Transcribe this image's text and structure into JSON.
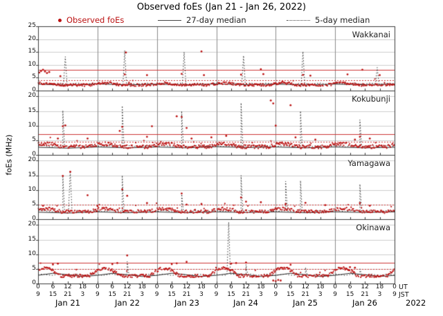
{
  "header": {
    "title": "Observed foEs (Jan 21 - Jan 26, 2022)"
  },
  "legend": {
    "observed": {
      "label": "Observed foEs",
      "color": "#bb1111",
      "marker": "dot"
    },
    "median27": {
      "label": "27-day median",
      "color": "#444444",
      "style": "solid"
    },
    "median5": {
      "label": "5-day median",
      "color": "#444444",
      "style": "dotted"
    }
  },
  "chart_data": {
    "type": "scatter",
    "title": "Observed foEs (Jan 21 - Jan 26, 2022)",
    "colors": {
      "observed": "#bb1111",
      "median": "#2b2b2b",
      "red_line": "#cc3333",
      "grid": "#cccccc",
      "day_grid": "#8a8a8a",
      "border": "#3a3a3a"
    },
    "axes": {
      "ylabel": "foEs (MHz)",
      "x_start_hour": 0,
      "x_end_hour": 144,
      "ut_tick_step": 6,
      "ut_tick_labels": [
        "0",
        "6",
        "12",
        "18"
      ],
      "jst_tick_labels": [
        "9",
        "15",
        "21",
        "3"
      ],
      "ut_axis_label": "UT",
      "jst_axis_label": "JST",
      "day_labels": [
        "Jan 21",
        "Jan 22",
        "Jan 23",
        "Jan 24",
        "Jan 25",
        "Jan 26"
      ],
      "year_label": "2022"
    },
    "panels": [
      {
        "station": "Wakkanai",
        "ylim": [
          0,
          25
        ],
        "yticks": [
          0,
          5,
          10,
          15,
          20,
          25
        ],
        "red_solid_level": 8.0,
        "red_dotted_level": 4.0,
        "scatter_gen": {
          "seed": 101,
          "step_h": 0.3,
          "mean": 2.2,
          "diurnal_amp": 0.7,
          "noise": 0.5,
          "dropout": 0.1
        },
        "observed_features": [
          [
            0.5,
            7.0
          ],
          [
            1.2,
            7.6
          ],
          [
            2.0,
            8.1
          ],
          [
            2.8,
            7.4
          ],
          [
            3.6,
            6.8
          ],
          [
            4.5,
            7.2
          ],
          [
            9,
            5.6
          ],
          [
            35,
            6.3
          ],
          [
            35.5,
            14.8
          ],
          [
            44,
            6.0
          ],
          [
            58,
            6.5
          ],
          [
            66,
            15.2
          ],
          [
            67,
            6.0
          ],
          [
            82,
            6.2
          ],
          [
            90,
            8.3
          ],
          [
            91,
            6.4
          ],
          [
            107,
            6.1
          ],
          [
            110,
            5.8
          ],
          [
            125,
            6.3
          ],
          [
            131,
            8.1
          ],
          [
            138,
            6.0
          ]
        ],
        "median27": [
          [
            0,
            2.5
          ],
          [
            12,
            2.1
          ],
          [
            24,
            2.6
          ],
          [
            36,
            2.2
          ],
          [
            48,
            2.5
          ],
          [
            60,
            2.2
          ],
          [
            72,
            2.6
          ],
          [
            84,
            2.3
          ],
          [
            96,
            2.5
          ],
          [
            108,
            2.2
          ],
          [
            120,
            2.5
          ],
          [
            132,
            2.3
          ],
          [
            144,
            2.5
          ]
        ],
        "median5_base": 2.7,
        "median5_spikes": [
          [
            11,
            13.2
          ],
          [
            35,
            15.6
          ],
          [
            59,
            15.0
          ],
          [
            83,
            13.6
          ],
          [
            107,
            15.2
          ],
          [
            137,
            9.0
          ]
        ]
      },
      {
        "station": "Kokubunji",
        "ylim": [
          0,
          22
        ],
        "yticks": [
          0,
          5,
          10,
          15,
          20
        ],
        "red_solid_level": 7.0,
        "red_dotted_level": 4.6,
        "scatter_gen": {
          "seed": 202,
          "step_h": 0.3,
          "mean": 2.8,
          "diurnal_amp": 1.0,
          "noise": 0.6,
          "dropout": 0.07
        },
        "observed_features": [
          [
            8,
            5.6
          ],
          [
            10,
            9.8
          ],
          [
            11,
            10.1
          ],
          [
            20,
            5.6
          ],
          [
            33,
            8.2
          ],
          [
            34,
            9.6
          ],
          [
            44,
            6.2
          ],
          [
            46,
            9.8
          ],
          [
            56,
            13.2
          ],
          [
            58,
            13.0
          ],
          [
            60,
            9.2
          ],
          [
            62,
            5.6
          ],
          [
            70,
            6.0
          ],
          [
            76,
            6.5
          ],
          [
            94,
            18.6
          ],
          [
            95,
            17.6
          ],
          [
            96,
            10.0
          ],
          [
            102,
            17.0
          ],
          [
            104,
            6.0
          ],
          [
            112,
            5.2
          ],
          [
            128,
            5.2
          ],
          [
            130,
            6.2
          ],
          [
            134,
            5.6
          ]
        ],
        "median27": [
          [
            0,
            2.6
          ],
          [
            12,
            2.3
          ],
          [
            24,
            2.7
          ],
          [
            36,
            2.4
          ],
          [
            48,
            2.7
          ],
          [
            60,
            2.4
          ],
          [
            72,
            2.8
          ],
          [
            84,
            2.5
          ],
          [
            96,
            2.7
          ],
          [
            108,
            2.4
          ],
          [
            120,
            2.7
          ],
          [
            132,
            2.4
          ],
          [
            144,
            2.6
          ]
        ],
        "median5_base": 3.0,
        "median5_spikes": [
          [
            10,
            15.2
          ],
          [
            34,
            16.8
          ],
          [
            58,
            15.0
          ],
          [
            82,
            17.8
          ],
          [
            106,
            15.0
          ],
          [
            130,
            12.0
          ]
        ]
      },
      {
        "station": "Yamagawa",
        "ylim": [
          0,
          22
        ],
        "yticks": [
          0,
          5,
          10,
          15,
          20
        ],
        "red_solid_level": null,
        "red_dotted_level": 5.0,
        "scatter_gen": {
          "seed": 303,
          "step_h": 0.3,
          "mean": 2.6,
          "diurnal_amp": 1.0,
          "noise": 0.55,
          "dropout": 0.12
        },
        "observed_features": [
          [
            2,
            4.6
          ],
          [
            10,
            14.8
          ],
          [
            13,
            16.2
          ],
          [
            20,
            8.2
          ],
          [
            24,
            4.5
          ],
          [
            34,
            10.2
          ],
          [
            36,
            8.0
          ],
          [
            44,
            5.5
          ],
          [
            58,
            8.8
          ],
          [
            60,
            5.0
          ],
          [
            66,
            5.2
          ],
          [
            82,
            7.4
          ],
          [
            84,
            6.0
          ],
          [
            90,
            5.8
          ],
          [
            100,
            5.2
          ],
          [
            108,
            5.6
          ],
          [
            116,
            4.8
          ],
          [
            130,
            5.5
          ],
          [
            134,
            4.6
          ]
        ],
        "median27": [
          [
            0,
            2.4
          ],
          [
            12,
            2.1
          ],
          [
            24,
            2.5
          ],
          [
            36,
            2.2
          ],
          [
            48,
            2.5
          ],
          [
            60,
            2.2
          ],
          [
            72,
            2.5
          ],
          [
            84,
            2.3
          ],
          [
            96,
            2.5
          ],
          [
            108,
            2.2
          ],
          [
            120,
            2.5
          ],
          [
            132,
            2.3
          ],
          [
            144,
            2.5
          ]
        ],
        "median5_base": 2.8,
        "median5_spikes": [
          [
            10,
            15.0
          ],
          [
            13,
            16.5
          ],
          [
            34,
            15.0
          ],
          [
            58,
            9.0
          ],
          [
            82,
            15.0
          ],
          [
            100,
            13.0
          ],
          [
            106,
            13.2
          ],
          [
            130,
            12.0
          ]
        ]
      },
      {
        "station": "Okinawa",
        "ylim": [
          0,
          22
        ],
        "yticks": [
          0,
          5,
          10,
          15,
          20
        ],
        "red_solid_level": 7.0,
        "red_dotted_level": 5.0,
        "scatter_gen": {
          "seed": 404,
          "step_h": 0.3,
          "mean": 2.6,
          "diurnal_amp": 2.6,
          "noise": 0.5,
          "dropout": 0.1
        },
        "observed_features": [
          [
            6,
            6.5
          ],
          [
            8,
            6.8
          ],
          [
            30,
            6.6
          ],
          [
            32,
            7.0
          ],
          [
            36,
            9.6
          ],
          [
            54,
            6.6
          ],
          [
            56,
            6.9
          ],
          [
            60,
            7.4
          ],
          [
            78,
            6.8
          ],
          [
            80,
            7.0
          ],
          [
            84,
            7.2
          ],
          [
            95,
            1.0
          ],
          [
            96,
            0.8
          ],
          [
            97,
            1.2
          ],
          [
            98,
            1.0
          ],
          [
            102,
            6.4
          ],
          [
            126,
            5.6
          ],
          [
            128,
            5.4
          ]
        ],
        "median27": [
          [
            0,
            2.8
          ],
          [
            6,
            3.5
          ],
          [
            12,
            3.0
          ],
          [
            18,
            2.4
          ],
          [
            24,
            2.8
          ],
          [
            30,
            3.5
          ],
          [
            36,
            3.0
          ],
          [
            42,
            2.4
          ],
          [
            48,
            2.8
          ],
          [
            54,
            3.5
          ],
          [
            60,
            3.0
          ],
          [
            66,
            2.4
          ],
          [
            72,
            2.8
          ],
          [
            78,
            3.5
          ],
          [
            84,
            3.0
          ],
          [
            90,
            2.4
          ],
          [
            96,
            2.8
          ],
          [
            102,
            3.5
          ],
          [
            108,
            3.0
          ],
          [
            114,
            2.4
          ],
          [
            120,
            2.8
          ],
          [
            126,
            3.5
          ],
          [
            132,
            3.0
          ],
          [
            138,
            2.4
          ],
          [
            144,
            2.8
          ]
        ],
        "median5_base": 3.0,
        "median5_spikes": [
          [
            36,
            7.5
          ],
          [
            77,
            21.0
          ],
          [
            84,
            6.5
          ],
          [
            108,
            5.5
          ],
          [
            130,
            5.0
          ]
        ]
      }
    ]
  }
}
